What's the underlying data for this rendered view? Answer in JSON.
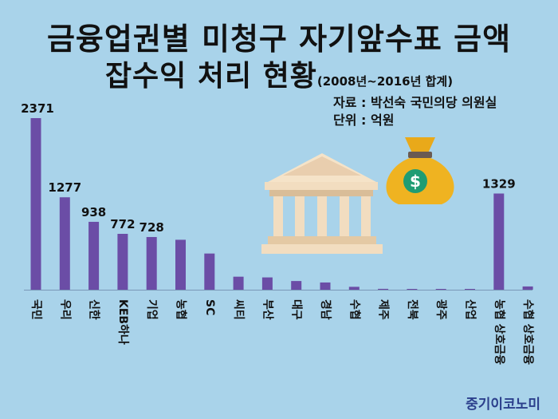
{
  "title": {
    "line1": "금융업권별 미청구 자기앞수표 금액",
    "line2_main": "잡수익 처리 현황",
    "line2_sub": "(2008년~2016년 합계)"
  },
  "source": {
    "line1": "자료 : 박선숙 국민의당 의원실",
    "line2": "단위 : 억원"
  },
  "brand": "중기이코노미",
  "colors": {
    "background": "#a9d3ea",
    "bar": "#6b4da6"
  },
  "icons": [
    "bank-building-icon",
    "money-bag-icon"
  ],
  "chart_data": {
    "type": "bar",
    "title": "금융업권별 미청구 자기앞수표 금액 잡수익 처리 현황",
    "unit": "억원",
    "categories": [
      "국민",
      "우리",
      "신한",
      "KEB하나",
      "기업",
      "농협",
      "SC",
      "씨티",
      "부산",
      "대구",
      "경남",
      "수협",
      "제주",
      "전북",
      "광주",
      "산업",
      "농협 상호금융",
      "수협 상호금융"
    ],
    "values": [
      2371,
      1277,
      938,
      772,
      728,
      690,
      500,
      180,
      170,
      120,
      100,
      40,
      12,
      10,
      8,
      5,
      1329,
      45
    ],
    "labels": [
      "2371",
      "1277",
      "938",
      "772",
      "728",
      "",
      "",
      "",
      "",
      "",
      "",
      "",
      "",
      "",
      "",
      "",
      "1329",
      ""
    ],
    "ylim": [
      0,
      2371
    ],
    "grid": false
  }
}
